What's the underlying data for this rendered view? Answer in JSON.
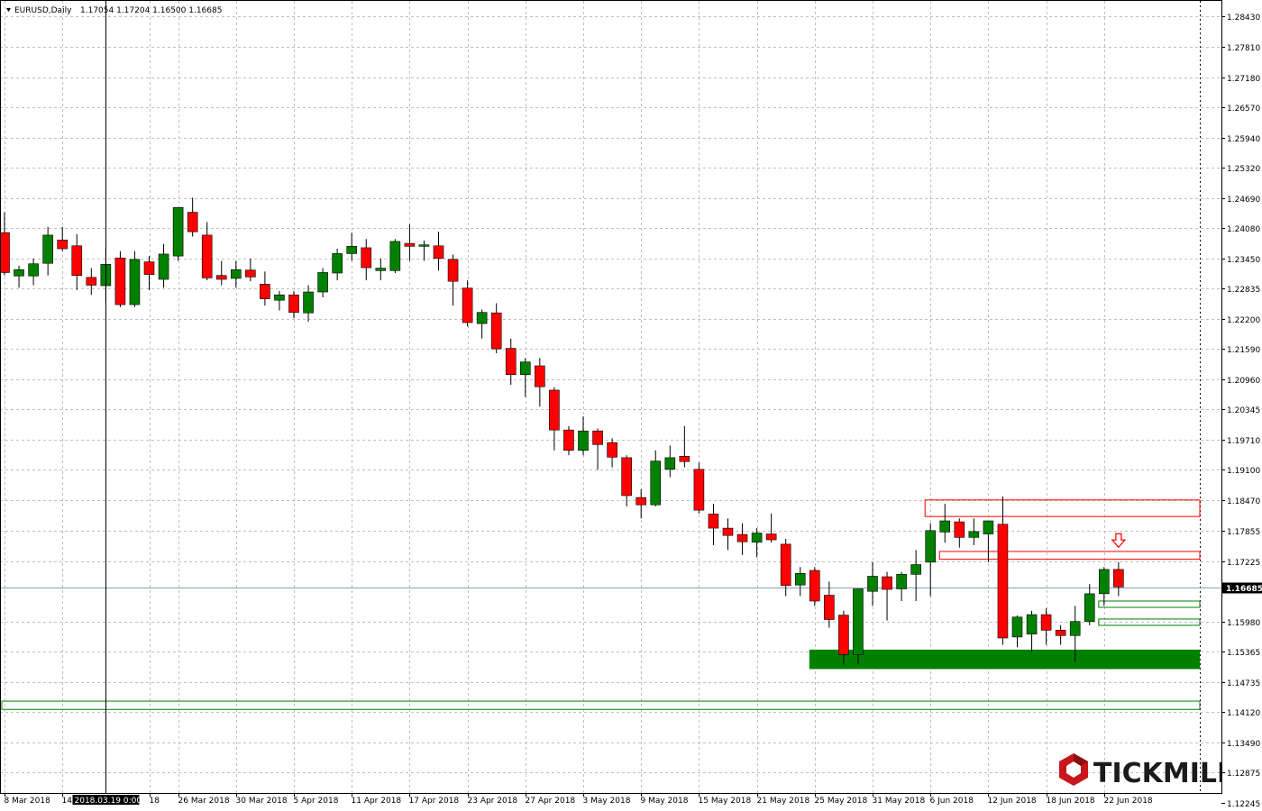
{
  "header": {
    "symbol": "EURUSD,Daily",
    "ohlc": "1.17054 1.17204 1.16500 1.16685"
  },
  "crosshair": {
    "date_label": "2018.03.19 0:00"
  },
  "logo": {
    "text": "TICKMILL"
  },
  "colors": {
    "bull": "#008000",
    "bear": "#ff0000",
    "wick": "#000000",
    "grid": "#c0c0c0",
    "support_zone": "#008000",
    "resistance_box": "#ff0000",
    "price_line": "#8ba0b8",
    "logo_red": "#c8161d"
  },
  "chart_data": {
    "type": "candlestick",
    "symbol": "EURUSD",
    "timeframe": "Daily",
    "current_price": 1.16685,
    "ylim": [
      1.1245,
      1.2875
    ],
    "y_ticks": [
      "1.28430",
      "1.27810",
      "1.27180",
      "1.26570",
      "1.25940",
      "1.25320",
      "1.24690",
      "1.24080",
      "1.23450",
      "1.22835",
      "1.22200",
      "1.21590",
      "1.20960",
      "1.20345",
      "1.19710",
      "1.19100",
      "1.18470",
      "1.17855",
      "1.17225",
      "1.16685",
      "1.15980",
      "1.15365",
      "1.14735",
      "1.14120",
      "1.13490",
      "1.12875",
      "1.12245"
    ],
    "y_tick_values": [
      1.2843,
      1.2781,
      1.2718,
      1.2657,
      1.2594,
      1.2532,
      1.2469,
      1.2408,
      1.2345,
      1.22835,
      1.222,
      1.2159,
      1.2096,
      1.20345,
      1.1971,
      1.191,
      1.1847,
      1.17855,
      1.17225,
      1.16685,
      1.1598,
      1.15365,
      1.14735,
      1.1412,
      1.1349,
      1.12875,
      1.12245
    ],
    "x_labels": [
      {
        "i": 0,
        "text": "8 Mar 2018"
      },
      {
        "i": 4,
        "text": "14 M"
      },
      {
        "i": 10,
        "text": "18"
      },
      {
        "i": 12,
        "text": "26 Mar 2018"
      },
      {
        "i": 16,
        "text": "30 Mar 2018"
      },
      {
        "i": 20,
        "text": "5 Apr 2018"
      },
      {
        "i": 24,
        "text": "11 Apr 2018"
      },
      {
        "i": 28,
        "text": "17 Apr 2018"
      },
      {
        "i": 32,
        "text": "23 Apr 2018"
      },
      {
        "i": 36,
        "text": "27 Apr 2018"
      },
      {
        "i": 40,
        "text": "3 May 2018"
      },
      {
        "i": 44,
        "text": "9 May 2018"
      },
      {
        "i": 48,
        "text": "15 May 2018"
      },
      {
        "i": 52,
        "text": "21 May 2018"
      },
      {
        "i": 56,
        "text": "25 May 2018"
      },
      {
        "i": 60,
        "text": "31 May 2018"
      },
      {
        "i": 64,
        "text": "6 Jun 2018"
      },
      {
        "i": 68,
        "text": "12 Jun 2018"
      },
      {
        "i": 72,
        "text": "18 Jun 2018"
      },
      {
        "i": 76,
        "text": "22 Jun 2018"
      }
    ],
    "crosshair_candle": 7,
    "candles": [
      [
        1.2398,
        1.244,
        1.231,
        1.2316
      ],
      [
        1.2309,
        1.233,
        1.2285,
        1.2322
      ],
      [
        1.2309,
        1.2345,
        1.229,
        1.2334
      ],
      [
        1.2335,
        1.241,
        1.231,
        1.2393
      ],
      [
        1.2383,
        1.241,
        1.236,
        1.2365
      ],
      [
        1.2371,
        1.2395,
        1.228,
        1.231
      ],
      [
        1.2306,
        1.2325,
        1.227,
        1.229
      ],
      [
        1.2289,
        1.2368,
        1.2255,
        1.2333
      ],
      [
        1.2346,
        1.236,
        1.2245,
        1.225
      ],
      [
        1.225,
        1.236,
        1.2245,
        1.2343
      ],
      [
        1.2338,
        1.235,
        1.228,
        1.2312
      ],
      [
        1.2302,
        1.2375,
        1.2285,
        1.2354
      ],
      [
        1.235,
        1.245,
        1.234,
        1.245
      ],
      [
        1.244,
        1.247,
        1.239,
        1.24
      ],
      [
        1.2393,
        1.242,
        1.23,
        1.2305
      ],
      [
        1.231,
        1.234,
        1.229,
        1.2302
      ],
      [
        1.2304,
        1.234,
        1.2285,
        1.2322
      ],
      [
        1.2321,
        1.2345,
        1.2298,
        1.2307
      ],
      [
        1.2292,
        1.2318,
        1.2248,
        1.2262
      ],
      [
        1.2259,
        1.2278,
        1.2238,
        1.227
      ],
      [
        1.227,
        1.2278,
        1.2222,
        1.2234
      ],
      [
        1.2233,
        1.229,
        1.2215,
        1.2276
      ],
      [
        1.2276,
        1.2325,
        1.2265,
        1.2316
      ],
      [
        1.2315,
        1.2365,
        1.23,
        1.2355
      ],
      [
        1.2355,
        1.2398,
        1.234,
        1.237
      ],
      [
        1.2367,
        1.2385,
        1.23,
        1.2326
      ],
      [
        1.232,
        1.2345,
        1.23,
        1.2325
      ],
      [
        1.232,
        1.2385,
        1.2315,
        1.238
      ],
      [
        1.2376,
        1.2415,
        1.234,
        1.237
      ],
      [
        1.237,
        1.2382,
        1.234,
        1.2373
      ],
      [
        1.2371,
        1.24,
        1.232,
        1.2345
      ],
      [
        1.2343,
        1.2353,
        1.2248,
        1.2298
      ],
      [
        1.2284,
        1.23,
        1.2205,
        1.2213
      ],
      [
        1.2211,
        1.224,
        1.218,
        1.2234
      ],
      [
        1.2233,
        1.2253,
        1.215,
        1.2159
      ],
      [
        1.216,
        1.218,
        1.2085,
        1.2106
      ],
      [
        1.2106,
        1.214,
        1.206,
        1.2132
      ],
      [
        1.2124,
        1.214,
        1.204,
        1.2081
      ],
      [
        1.2074,
        1.208,
        1.195,
        1.1992
      ],
      [
        1.1992,
        1.2,
        1.194,
        1.195
      ],
      [
        1.195,
        1.202,
        1.194,
        1.199
      ],
      [
        1.199,
        1.1995,
        1.191,
        1.1962
      ],
      [
        1.1966,
        1.1975,
        1.1915,
        1.1936
      ],
      [
        1.1935,
        1.194,
        1.1835,
        1.1857
      ],
      [
        1.1853,
        1.187,
        1.181,
        1.1838
      ],
      [
        1.1838,
        1.195,
        1.1835,
        1.1928
      ],
      [
        1.1911,
        1.196,
        1.1895,
        1.1935
      ],
      [
        1.1938,
        1.2,
        1.1915,
        1.1927
      ],
      [
        1.1911,
        1.1925,
        1.182,
        1.1827
      ],
      [
        1.1819,
        1.184,
        1.1755,
        1.179
      ],
      [
        1.179,
        1.181,
        1.1745,
        1.1775
      ],
      [
        1.1777,
        1.18,
        1.1735,
        1.1762
      ],
      [
        1.1761,
        1.179,
        1.173,
        1.178
      ],
      [
        1.1778,
        1.182,
        1.176,
        1.1766
      ],
      [
        1.1757,
        1.1768,
        1.165,
        1.1672
      ],
      [
        1.1673,
        1.171,
        1.165,
        1.1697
      ],
      [
        1.1703,
        1.171,
        1.163,
        1.164
      ],
      [
        1.1652,
        1.168,
        1.1585,
        1.1602
      ],
      [
        1.1611,
        1.162,
        1.1509,
        1.153
      ],
      [
        1.153,
        1.1665,
        1.151,
        1.1665
      ],
      [
        1.166,
        1.172,
        1.163,
        1.1691
      ],
      [
        1.169,
        1.17,
        1.16,
        1.1664
      ],
      [
        1.1665,
        1.17,
        1.164,
        1.1695
      ],
      [
        1.1695,
        1.1745,
        1.164,
        1.1715
      ],
      [
        1.172,
        1.18,
        1.165,
        1.1785
      ],
      [
        1.1782,
        1.184,
        1.176,
        1.1805
      ],
      [
        1.1803,
        1.181,
        1.175,
        1.1771
      ],
      [
        1.1771,
        1.181,
        1.1755,
        1.1783
      ],
      [
        1.1778,
        1.1795,
        1.172,
        1.1805
      ],
      [
        1.1798,
        1.1855,
        1.155,
        1.1564
      ],
      [
        1.1566,
        1.161,
        1.1545,
        1.1607
      ],
      [
        1.1572,
        1.162,
        1.1535,
        1.1612
      ],
      [
        1.1612,
        1.1625,
        1.155,
        1.158
      ],
      [
        1.158,
        1.159,
        1.155,
        1.1569
      ],
      [
        1.1569,
        1.163,
        1.1515,
        1.1598
      ],
      [
        1.1598,
        1.1675,
        1.159,
        1.1655
      ],
      [
        1.1655,
        1.171,
        1.163,
        1.1705
      ],
      [
        1.1705,
        1.172,
        1.165,
        1.1669
      ]
    ],
    "zones": [
      {
        "kind": "support",
        "filled": true,
        "start": 56,
        "y_top": 1.154,
        "y_bottom": 1.15
      },
      {
        "kind": "support",
        "filled": false,
        "start": 0,
        "y_top": 1.1434,
        "y_bottom": 1.1417
      },
      {
        "kind": "resistance",
        "filled": false,
        "start": 64,
        "y_top": 1.1848,
        "y_bottom": 1.1814
      },
      {
        "kind": "resistance",
        "filled": false,
        "start": 65,
        "y_top": 1.1742,
        "y_bottom": 1.1726
      },
      {
        "kind": "support",
        "filled": false,
        "start": 76,
        "y_top": 1.164,
        "y_bottom": 1.1627
      },
      {
        "kind": "support",
        "filled": false,
        "start": 76,
        "y_top": 1.1603,
        "y_bottom": 1.159
      }
    ],
    "arrow": {
      "type": "down",
      "candle": 77,
      "y": 1.176
    }
  }
}
